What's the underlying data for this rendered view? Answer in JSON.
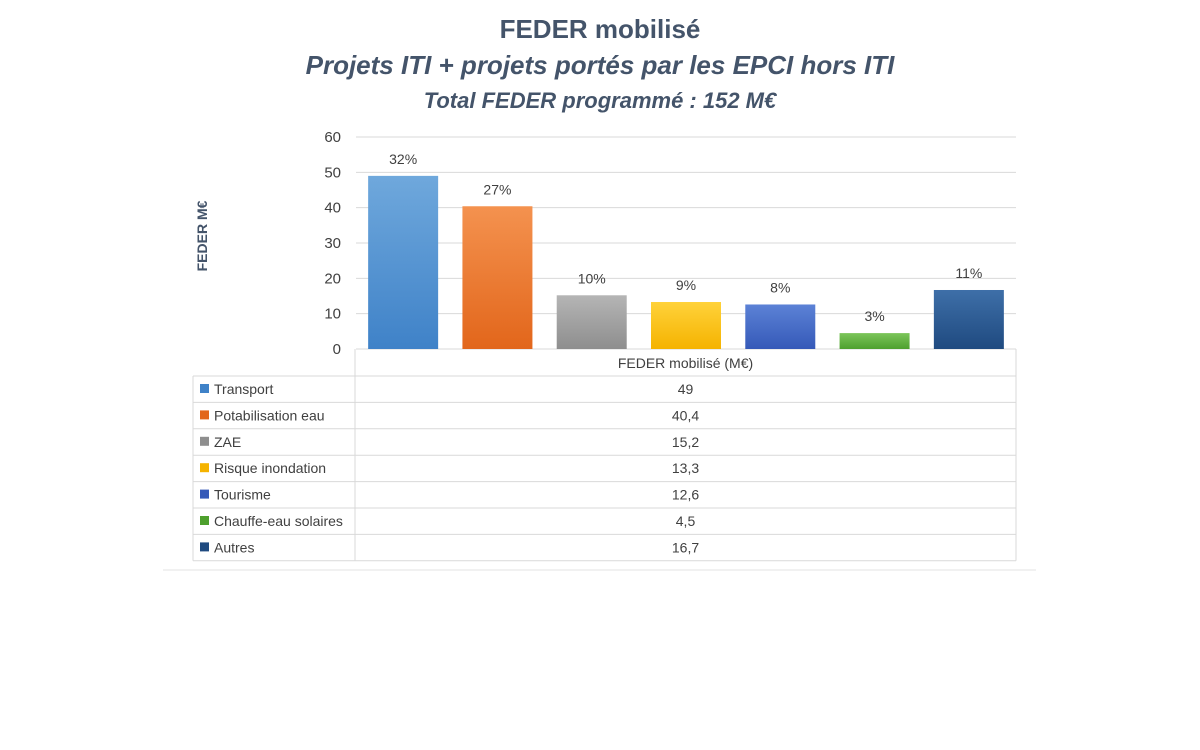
{
  "chart_data": {
    "type": "bar",
    "title": "FEDER mobilisé",
    "subtitle": "Projets ITI + projets portés par les EPCI hors ITI",
    "subtitle2": "Total FEDER programmé  : 152 M€",
    "ylabel": "FEDER M€",
    "xlabel": "FEDER mobilisé (M€)",
    "ylim": [
      0,
      60
    ],
    "yticks": [
      0,
      10,
      20,
      30,
      40,
      50,
      60
    ],
    "grid": true,
    "categories": [
      "Transport",
      "Potabilisation eau",
      "ZAE",
      "Risque inondation",
      "Tourisme",
      "Chauffe-eau solaires",
      "Autres"
    ],
    "values": [
      49,
      40.4,
      15.2,
      13.3,
      12.6,
      4.5,
      16.7
    ],
    "value_labels": [
      "49",
      "40,4",
      "15,2",
      "13,3",
      "12,6",
      "4,5",
      "16,7"
    ],
    "percent_labels": [
      "32%",
      "27%",
      "10%",
      "9%",
      "8%",
      "3%",
      "11%"
    ],
    "colors": [
      [
        "#6FA8DC",
        "#3F82C8"
      ],
      [
        "#F4924F",
        "#E2661B"
      ],
      [
        "#B5B5B5",
        "#8E8E8E"
      ],
      [
        "#FFD23A",
        "#F5B300"
      ],
      [
        "#5C82D6",
        "#3559B8"
      ],
      [
        "#7CC55A",
        "#4EA02E"
      ],
      [
        "#3E6FA8",
        "#1F4A80"
      ]
    ]
  }
}
